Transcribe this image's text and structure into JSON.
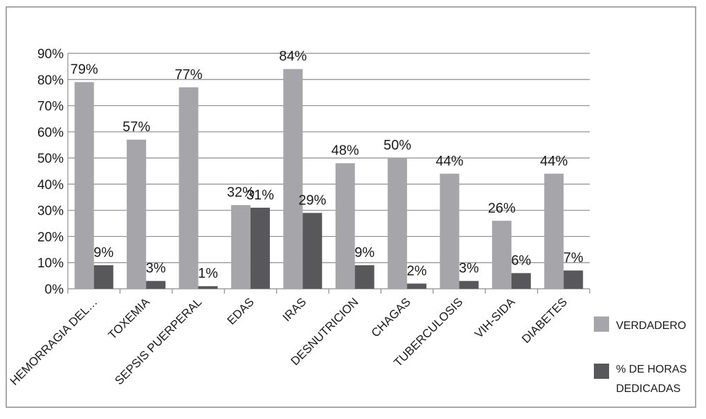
{
  "chart_data": {
    "type": "bar",
    "categories": [
      "HEMORRAGIA DEL…",
      "TOXEMIA",
      "SEPSIS PUERPERAL",
      "EDAS",
      "IRAS",
      "DESNUTRICION",
      "CHAGAS",
      "TUBERCULOSIS",
      "VIH-SIDA",
      "DIABETES"
    ],
    "series": [
      {
        "name": "VERDADERO",
        "values": [
          79,
          57,
          77,
          32,
          84,
          48,
          50,
          44,
          26,
          44
        ],
        "labels": [
          "79%",
          "57%",
          "77%",
          "32%",
          "84%",
          "48%",
          "50%",
          "44%",
          "26%",
          "44%"
        ],
        "color": "#a6a6aa"
      },
      {
        "name": "% DE HORAS DEDICADAS",
        "name_lines": [
          "% DE HORAS",
          "DEDICADAS"
        ],
        "values": [
          9,
          3,
          1,
          31,
          29,
          9,
          2,
          3,
          6,
          7
        ],
        "labels": [
          "9%",
          "3%",
          "1%",
          "31%",
          "29%",
          "9%",
          "2%",
          "3%",
          "6%",
          "7%"
        ],
        "color": "#58585b"
      }
    ],
    "yticks": [
      "0%",
      "10%",
      "20%",
      "30%",
      "40%",
      "50%",
      "60%",
      "70%",
      "80%",
      "90%"
    ],
    "ylim": [
      0,
      90
    ],
    "grid": true,
    "legend_position": "right",
    "title": "",
    "xlabel": "",
    "ylabel": ""
  },
  "colors": {
    "grid": "#8c8c8c",
    "border": "#8c8c8c"
  }
}
